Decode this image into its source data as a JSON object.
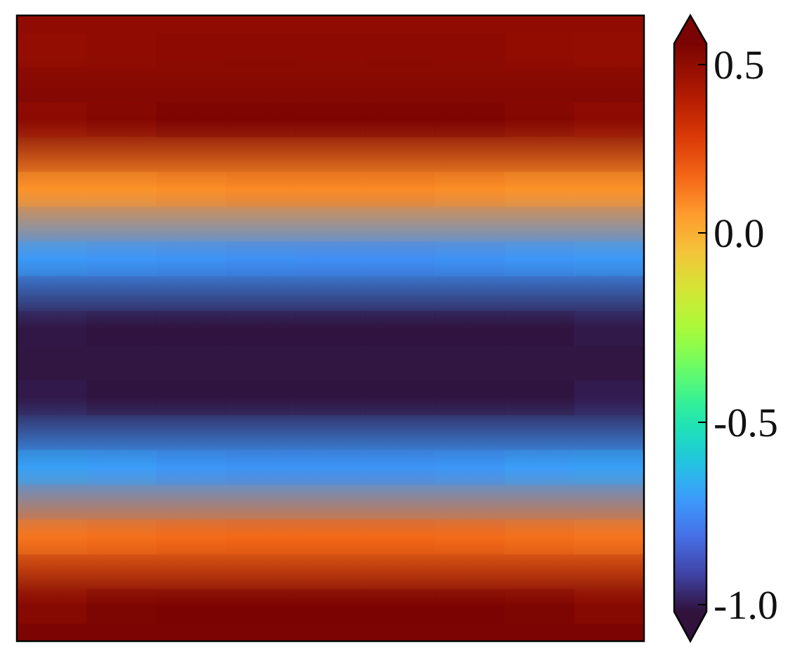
{
  "chart_data": {
    "type": "heatmap",
    "title": "",
    "xlabel": "",
    "ylabel": "",
    "axes_visible": false,
    "colormap": "turbo",
    "rows": 9,
    "cols": 9,
    "values": [
      [
        0.42,
        0.44,
        0.46,
        0.47,
        0.46,
        0.47,
        0.46,
        0.43,
        0.41
      ],
      [
        0.4,
        0.45,
        0.52,
        0.55,
        0.55,
        0.55,
        0.52,
        0.45,
        0.4
      ],
      [
        0.05,
        0.05,
        0.08,
        0.1,
        0.1,
        0.1,
        0.08,
        0.05,
        0.05
      ],
      [
        -0.68,
        -0.7,
        -0.72,
        -0.74,
        -0.75,
        -0.75,
        -0.73,
        -0.7,
        -0.68
      ],
      [
        -0.98,
        -1.0,
        -1.0,
        -1.0,
        -1.0,
        -1.0,
        -1.0,
        -1.0,
        -0.97
      ],
      [
        -0.97,
        -1.0,
        -1.0,
        -1.0,
        -1.0,
        -1.0,
        -1.0,
        -1.0,
        -0.96
      ],
      [
        -0.66,
        -0.68,
        -0.72,
        -0.74,
        -0.74,
        -0.74,
        -0.72,
        -0.68,
        -0.66
      ],
      [
        0.1,
        0.12,
        0.15,
        0.16,
        0.16,
        0.16,
        0.15,
        0.12,
        0.1
      ],
      [
        0.42,
        0.48,
        0.54,
        0.54,
        0.5,
        0.54,
        0.54,
        0.48,
        0.42
      ]
    ],
    "colorbar": {
      "vmin": -1.0,
      "vmax": 0.5,
      "ticks": [
        0.5,
        0.0,
        -0.5,
        -1.0
      ],
      "tick_labels": [
        "0.5",
        "0.0",
        "-0.5",
        "-1.0"
      ],
      "extend": "both",
      "placement": "right"
    }
  }
}
